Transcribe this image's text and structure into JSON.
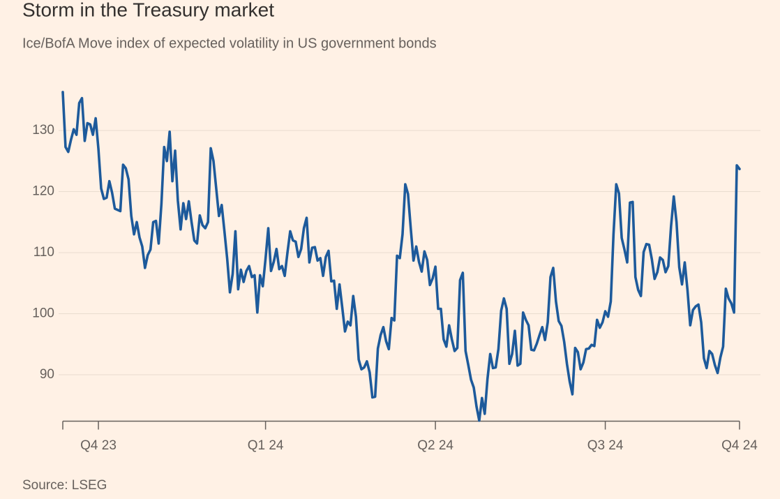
{
  "chart_data": {
    "type": "line",
    "title": "Storm in the Treasury market",
    "subtitle": "Ice/BofA Move index of expected volatility in US government bonds",
    "source": "Source: LSEG",
    "color": "#1d5a9b",
    "grid": true,
    "ylim": [
      82.4,
      137
    ],
    "yticks": [
      90,
      100,
      110,
      120,
      130
    ],
    "categories": [
      null,
      null,
      null,
      null,
      null,
      null,
      null,
      null,
      null,
      null,
      null,
      null,
      null,
      "Q4 23",
      null,
      null,
      null,
      null,
      null,
      null,
      null,
      null,
      null,
      null,
      null,
      null,
      null,
      null,
      null,
      null,
      null,
      null,
      null,
      null,
      null,
      null,
      null,
      null,
      null,
      null,
      null,
      null,
      null,
      null,
      null,
      null,
      null,
      null,
      null,
      null,
      null,
      null,
      null,
      null,
      null,
      null,
      null,
      null,
      null,
      null,
      null,
      null,
      null,
      null,
      null,
      null,
      null,
      null,
      null,
      null,
      null,
      null,
      null,
      null,
      "Q1 24",
      null,
      null,
      null,
      null,
      null,
      null,
      null,
      null,
      null,
      null,
      null,
      null,
      null,
      null,
      null,
      null,
      null,
      null,
      null,
      null,
      null,
      null,
      null,
      null,
      null,
      null,
      null,
      null,
      null,
      null,
      null,
      null,
      null,
      null,
      null,
      null,
      null,
      null,
      null,
      null,
      null,
      null,
      null,
      null,
      null,
      null,
      null,
      null,
      null,
      null,
      null,
      null,
      null,
      null,
      null,
      null,
      null,
      null,
      null,
      null,
      null,
      "Q2 24",
      null,
      null,
      null,
      null,
      null,
      null,
      null,
      null,
      null,
      null,
      null,
      null,
      null,
      null,
      null,
      null,
      null,
      null,
      null,
      null,
      null,
      null,
      null,
      null,
      null,
      null,
      null,
      null,
      null,
      null,
      null,
      null,
      null,
      null,
      null,
      null,
      null,
      null,
      null,
      null,
      null,
      null,
      null,
      null,
      null,
      null,
      null,
      null,
      null,
      null,
      null,
      null,
      null,
      null,
      null,
      null,
      null,
      null,
      null,
      null,
      null,
      "Q3 24",
      null,
      null,
      null,
      null,
      null,
      null,
      null,
      null,
      null,
      null,
      null,
      null,
      null,
      null,
      null,
      null,
      null,
      null,
      null,
      null,
      null,
      null,
      null,
      null,
      null,
      null,
      null,
      null,
      null,
      null,
      null,
      null,
      null,
      null,
      null,
      null,
      null,
      null,
      null,
      null,
      null,
      null,
      null,
      null,
      null,
      null,
      null,
      null,
      "Q4 24"
    ],
    "values": [
      136.3,
      127.3,
      126.5,
      128.5,
      130.2,
      129.3,
      134.5,
      135.3,
      128.3,
      131.2,
      131.0,
      129.3,
      132,
      127,
      120.5,
      118.8,
      119,
      121.7,
      119.8,
      117.2,
      117.0,
      116.8,
      124.4,
      123.8,
      122,
      116,
      113,
      115,
      112.5,
      111,
      107.5,
      109.6,
      110.5,
      115,
      115.2,
      111.5,
      118,
      127.3,
      125.0,
      129.8,
      121.7,
      126.7,
      118.5,
      113.8,
      118.1,
      115.5,
      118.4,
      115,
      112,
      111.5,
      116.1,
      114.5,
      114,
      115,
      127.1,
      125,
      120.5,
      116,
      117.8,
      113.5,
      109,
      103.5,
      106.5,
      113.5,
      104,
      107.2,
      105.2,
      107,
      107.8,
      106,
      106.3,
      100.2,
      106.3,
      104.5,
      109,
      114,
      107,
      108.5,
      110.6,
      107.3,
      107.8,
      106.2,
      110,
      113.5,
      112,
      111.8,
      109.3,
      110.6,
      114,
      115.7,
      108.4,
      110.8,
      110.9,
      108.7,
      109.1,
      106.2,
      109.3,
      110.3,
      105.3,
      105.4,
      100.8,
      104.8,
      101,
      97.1,
      98.7,
      98.1,
      102.9,
      99.5,
      92.5,
      90.9,
      91.2,
      92.2,
      90.4,
      86.3,
      86.4,
      94.3,
      96.5,
      97.8,
      95.5,
      94.2,
      99.3,
      98.9,
      109.5,
      109.1,
      113,
      121.2,
      119.6,
      114,
      108.7,
      111,
      108.5,
      106.9,
      110.2,
      108.8,
      104.7,
      105.8,
      107.7,
      100.8,
      100.8,
      95.8,
      94.6,
      98.1,
      95.8,
      93.9,
      94.4,
      105.5,
      106.7,
      93.9,
      91.6,
      89.2,
      87.9,
      84.8,
      82.5,
      86.2,
      83.6,
      89.3,
      93.4,
      91.1,
      91.2,
      94.2,
      100.5,
      102.5,
      100.8,
      91.8,
      93.4,
      97.2,
      91.5,
      91.8,
      100.2,
      99,
      98.1,
      94.1,
      94.0,
      95.1,
      96.5,
      97.8,
      95.7,
      98.6,
      106,
      107.5,
      102,
      98.8,
      98,
      95.4,
      91.8,
      88.9,
      86.8,
      94.4,
      93.7,
      90.9,
      92,
      94.2,
      94.3,
      94.9,
      94.7,
      99,
      97.7,
      98.6,
      100.4,
      99.5,
      102,
      113,
      121.2,
      119.7,
      112.4,
      110.5,
      108.4,
      118.2,
      118.3,
      106,
      103.9,
      102.9,
      110.1,
      111.4,
      111.3,
      108.9,
      105.7,
      106.8,
      109.2,
      108.8,
      106.8,
      107.8,
      114.3,
      119.2,
      115,
      107.6,
      104.8,
      108.4,
      103.9,
      98.1,
      100.6,
      101.2,
      101.5,
      98.6,
      92.7,
      91.1,
      93.9,
      93.4,
      91.6,
      90.3,
      92.8,
      94.6,
      104.1,
      102.5,
      101.7,
      100.2,
      124.3,
      123.7
    ]
  }
}
